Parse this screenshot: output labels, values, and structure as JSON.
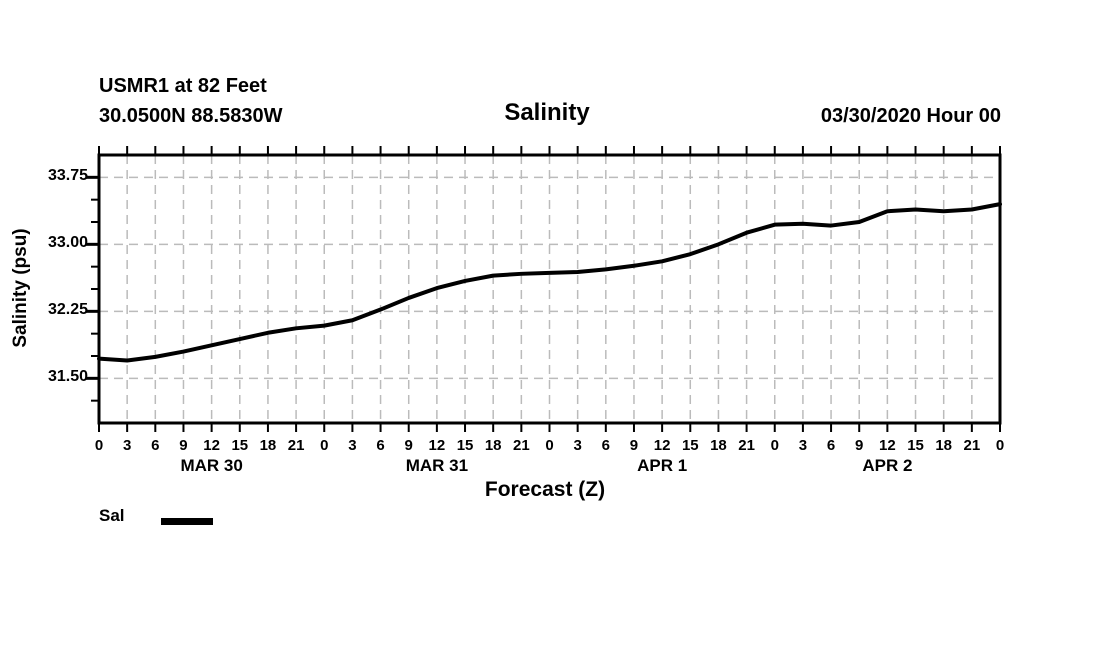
{
  "header": {
    "station_id_line": "USMR1 at 82 Feet",
    "coordinates_line": "30.0500N 88.5830W",
    "title": "Salinity",
    "run_datetime": "03/30/2020 Hour 00"
  },
  "axes": {
    "y_label": "Salinity (psu)",
    "x_label": "Forecast (Z)"
  },
  "legend": {
    "series_label": "Sal",
    "series_color": "#000000"
  },
  "chart_data": {
    "type": "line",
    "title": "Salinity",
    "xlabel": "Forecast (Z)",
    "ylabel": "Salinity (psu)",
    "x": [
      0,
      3,
      6,
      9,
      12,
      15,
      18,
      21,
      24,
      27,
      30,
      33,
      36,
      39,
      42,
      45,
      48,
      51,
      54,
      57,
      60,
      63,
      66,
      69,
      72,
      75,
      78,
      81,
      84,
      87,
      90,
      93,
      96
    ],
    "x_tick_labels": [
      "0",
      "3",
      "6",
      "9",
      "12",
      "15",
      "18",
      "21",
      "0",
      "3",
      "6",
      "9",
      "12",
      "15",
      "18",
      "21",
      "0",
      "3",
      "6",
      "9",
      "12",
      "15",
      "18",
      "21",
      "0",
      "3",
      "6",
      "9",
      "12",
      "15",
      "18",
      "21",
      "0"
    ],
    "values": [
      31.72,
      31.7,
      31.74,
      31.8,
      31.87,
      31.94,
      32.01,
      32.06,
      32.09,
      32.15,
      32.27,
      32.4,
      32.51,
      32.59,
      32.65,
      32.67,
      32.68,
      32.69,
      32.72,
      32.76,
      32.81,
      32.89,
      33.0,
      33.13,
      33.22,
      33.23,
      33.21,
      33.25,
      33.37,
      33.39,
      33.37,
      33.39,
      33.45
    ],
    "xlim": [
      0,
      96
    ],
    "ylim": [
      31.0,
      34.0
    ],
    "x_tick_step": 3,
    "y_major_ticks": [
      31.5,
      32.25,
      33.0,
      33.75
    ],
    "y_minor_step": 0.25,
    "day_labels": [
      {
        "label": "MAR 30",
        "center_hour": 12
      },
      {
        "label": "MAR 31",
        "center_hour": 36
      },
      {
        "label": "APR 1",
        "center_hour": 60
      },
      {
        "label": "APR 2",
        "center_hour": 84
      }
    ],
    "grid": true,
    "legend_position": "bottom-left",
    "legend": [
      {
        "label": "Sal",
        "color": "#000000"
      }
    ],
    "line_color": "#000000",
    "grid_color": "#bbbbbb"
  }
}
